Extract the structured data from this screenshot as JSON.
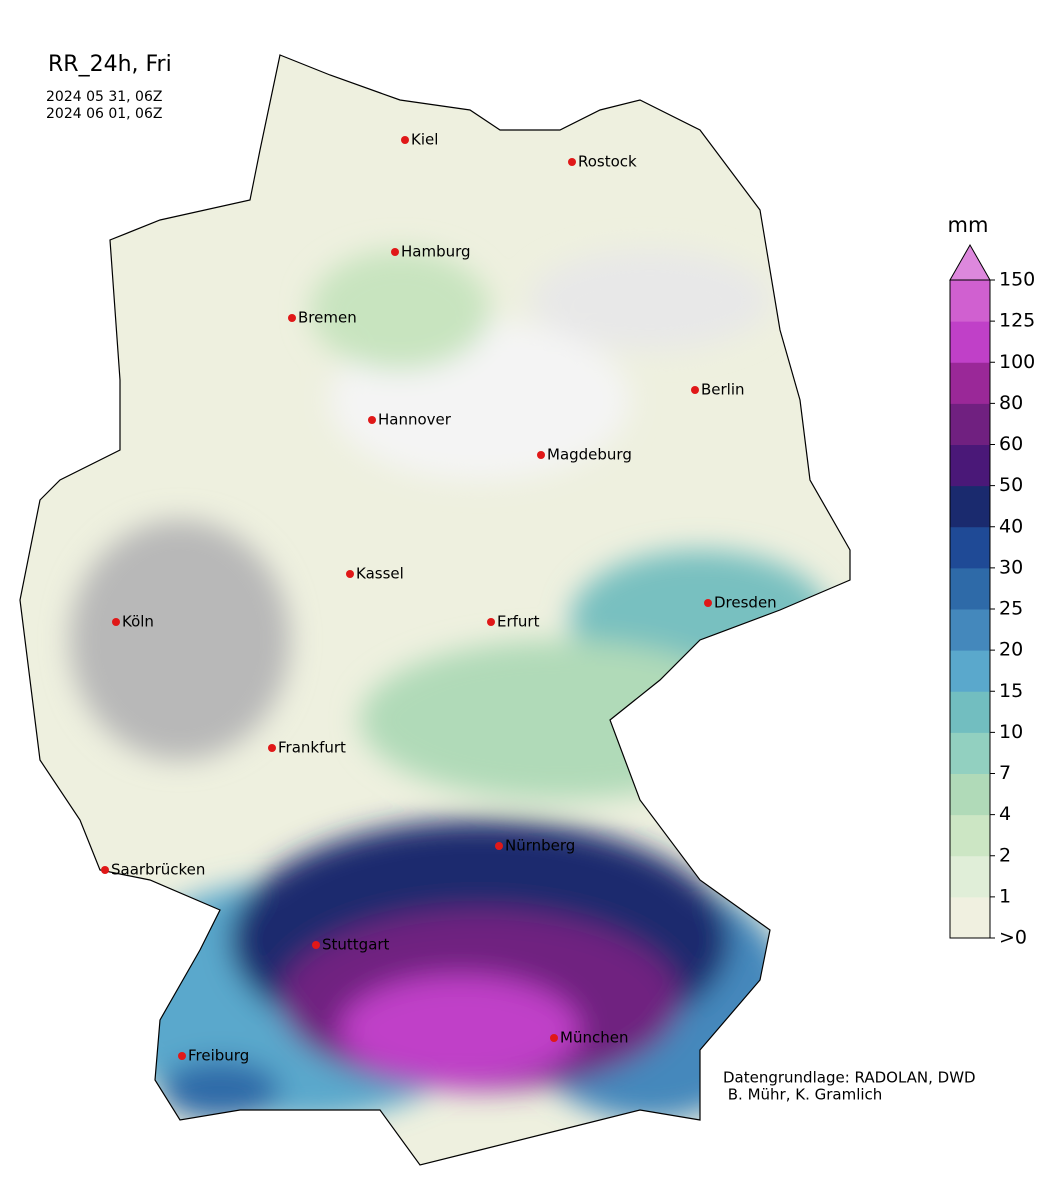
{
  "header": {
    "title": "RR_24h, Fri",
    "dates": [
      "2024 05 31, 06Z",
      "2024 06 01, 06Z"
    ]
  },
  "cities": [
    "Kiel",
    "Rostock",
    "Hamburg",
    "Bremen",
    "Berlin",
    "Hannover",
    "Magdeburg",
    "Kassel",
    "Dresden",
    "Köln",
    "Erfurt",
    "Frankfurt",
    "Nürnberg",
    "Saarbrücken",
    "Stuttgart",
    "München",
    "Freiburg"
  ],
  "colorbar": {
    "unit": "mm",
    "labels": [
      ">0",
      "1",
      "2",
      "4",
      "7",
      "10",
      "15",
      "20",
      "25",
      "30",
      "40",
      "50",
      "60",
      "80",
      "100",
      "125",
      "150"
    ],
    "colors": [
      "#f0f0e0",
      "#e0eed8",
      "#cce6c4",
      "#b0dab8",
      "#92d0c0",
      "#72bec0",
      "#5aa8cc",
      "#4488bc",
      "#2e6aa8",
      "#1f4a96",
      "#1a2a6e",
      "#4a1878",
      "#702080",
      "#9a2898",
      "#c040c8",
      "#d060d0"
    ],
    "extend_color": "#dd88dd"
  },
  "credits": [
    "Datengrundlage: RADOLAN, DWD",
    " B. Mühr, K. Gramlich"
  ]
}
